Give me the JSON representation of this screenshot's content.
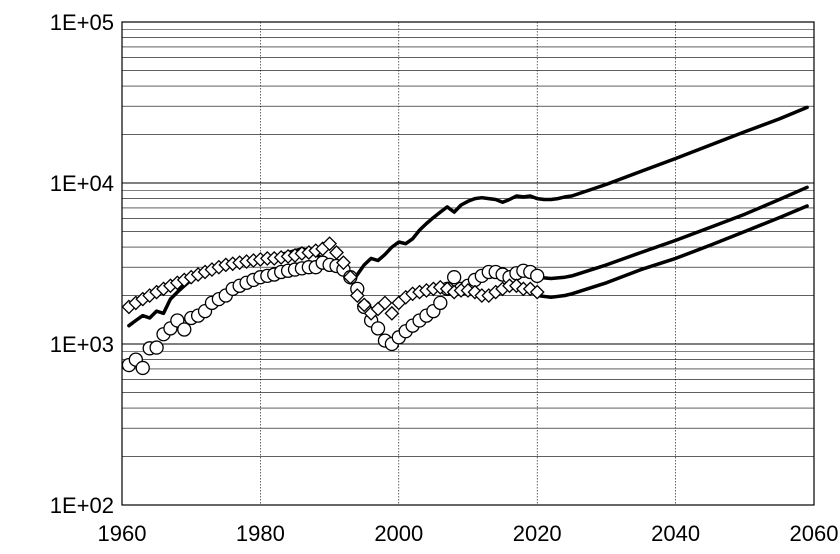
{
  "chart_data": {
    "type": "line",
    "x_scale": "linear",
    "y_scale": "log",
    "xlim": [
      1960,
      2060
    ],
    "ylim": [
      100,
      100000
    ],
    "x_ticks": [
      1960,
      1980,
      2000,
      2020,
      2040,
      2060
    ],
    "x_tick_labels": [
      "1960",
      "1980",
      "2000",
      "2020",
      "2040",
      "2060"
    ],
    "y_ticks": [
      100,
      1000,
      10000,
      100000
    ],
    "y_tick_labels": [
      "1E+02",
      "1E+03",
      "1E+04",
      "1E+05"
    ],
    "grid": {
      "x_major": true,
      "y_minor": true
    },
    "legend": "none",
    "series": [
      {
        "style": "line",
        "color": "#000000",
        "x": [
          1961,
          1962,
          1963,
          1964,
          1965,
          1966,
          1967,
          1968,
          1969,
          1970,
          1972,
          1974,
          1976,
          1978,
          1980,
          1982,
          1984,
          1986,
          1987,
          1988,
          1989,
          1990,
          1991,
          1992,
          1993,
          1994,
          1995,
          1996,
          1997,
          1998,
          1999,
          2000,
          2001,
          2002,
          2003,
          2004,
          2005,
          2006,
          2007,
          2008,
          2009,
          2010,
          2011,
          2012,
          2013,
          2014,
          2015,
          2016,
          2017,
          2018,
          2019,
          2020,
          2021,
          2022,
          2023,
          2024,
          2025,
          2030,
          2035,
          2040,
          2045,
          2050,
          2055,
          2059
        ],
        "y": [
          1300,
          1400,
          1500,
          1450,
          1600,
          1550,
          1900,
          2100,
          2300,
          2500,
          2700,
          2900,
          3100,
          3200,
          3300,
          3500,
          3700,
          3900,
          3800,
          3600,
          3400,
          3300,
          3100,
          2900,
          2400,
          2700,
          3100,
          3400,
          3300,
          3600,
          4000,
          4300,
          4200,
          4500,
          5100,
          5600,
          6100,
          6600,
          7100,
          6600,
          7300,
          7700,
          8000,
          8100,
          8000,
          7900,
          7600,
          7900,
          8300,
          8200,
          8300,
          8000,
          7900,
          7900,
          8000,
          8200,
          8300,
          9800,
          11800,
          14200,
          17200,
          20800,
          25000,
          29500
        ]
      },
      {
        "style": "line",
        "color": "#000000",
        "x": [
          2020,
          2022,
          2024,
          2025,
          2030,
          2035,
          2040,
          2045,
          2050,
          2055,
          2059
        ],
        "y": [
          2600,
          2550,
          2600,
          2650,
          3100,
          3700,
          4400,
          5300,
          6400,
          7900,
          9400
        ]
      },
      {
        "style": "line",
        "color": "#000000",
        "x": [
          2020,
          2022,
          2024,
          2025,
          2030,
          2035,
          2040,
          2045,
          2050,
          2055,
          2059
        ],
        "y": [
          2000,
          1950,
          2000,
          2050,
          2400,
          2900,
          3400,
          4100,
          5000,
          6100,
          7200
        ]
      },
      {
        "style": "markers",
        "marker": "circle",
        "color": "#000000",
        "x": [
          1961,
          1962,
          1963,
          1964,
          1965,
          1966,
          1967,
          1968,
          1969,
          1970,
          1971,
          1972,
          1973,
          1974,
          1975,
          1976,
          1977,
          1978,
          1979,
          1980,
          1981,
          1982,
          1983,
          1984,
          1985,
          1986,
          1987,
          1988,
          1989,
          1990,
          1991,
          1992,
          1993,
          1994,
          1995,
          1996,
          1997,
          1998,
          1999,
          2000,
          2001,
          2002,
          2003,
          2004,
          2005,
          2006,
          2007,
          2008,
          2009,
          2010,
          2011,
          2012,
          2013,
          2014,
          2015,
          2016,
          2017,
          2018,
          2019,
          2020
        ],
        "y": [
          740,
          800,
          710,
          940,
          950,
          1150,
          1250,
          1400,
          1230,
          1450,
          1500,
          1600,
          1800,
          1900,
          2000,
          2200,
          2300,
          2400,
          2500,
          2600,
          2650,
          2700,
          2800,
          2850,
          2900,
          2950,
          3000,
          3000,
          3200,
          3100,
          3050,
          2900,
          2600,
          2200,
          1700,
          1400,
          1250,
          1050,
          1000,
          1100,
          1200,
          1300,
          1400,
          1500,
          1600,
          1800,
          2200,
          2600,
          2200,
          2300,
          2500,
          2650,
          2800,
          2800,
          2700,
          2600,
          2750,
          2850,
          2800,
          2650
        ]
      },
      {
        "style": "markers",
        "marker": "diamond",
        "color": "#000000",
        "x": [
          1961,
          1962,
          1963,
          1964,
          1965,
          1966,
          1967,
          1968,
          1969,
          1970,
          1971,
          1972,
          1973,
          1974,
          1975,
          1976,
          1977,
          1978,
          1979,
          1980,
          1981,
          1982,
          1983,
          1984,
          1985,
          1986,
          1987,
          1988,
          1989,
          1990,
          1991,
          1992,
          1993,
          1994,
          1995,
          1996,
          1997,
          1998,
          1999,
          2000,
          2001,
          2002,
          2003,
          2004,
          2005,
          2006,
          2007,
          2008,
          2009,
          2010,
          2011,
          2012,
          2013,
          2014,
          2015,
          2016,
          2017,
          2018,
          2019,
          2020
        ],
        "y": [
          1700,
          1800,
          1900,
          2000,
          2100,
          2200,
          2300,
          2400,
          2500,
          2600,
          2700,
          2800,
          2900,
          3000,
          3100,
          3150,
          3200,
          3250,
          3300,
          3350,
          3400,
          3400,
          3450,
          3500,
          3550,
          3650,
          3700,
          3800,
          3900,
          4200,
          3700,
          3200,
          2600,
          2000,
          1750,
          1550,
          1650,
          1800,
          1550,
          1800,
          1950,
          2050,
          2100,
          2150,
          2200,
          2250,
          2200,
          2100,
          2150,
          2150,
          2100,
          2000,
          2000,
          2100,
          2200,
          2300,
          2300,
          2200,
          2200,
          2100
        ]
      }
    ]
  }
}
